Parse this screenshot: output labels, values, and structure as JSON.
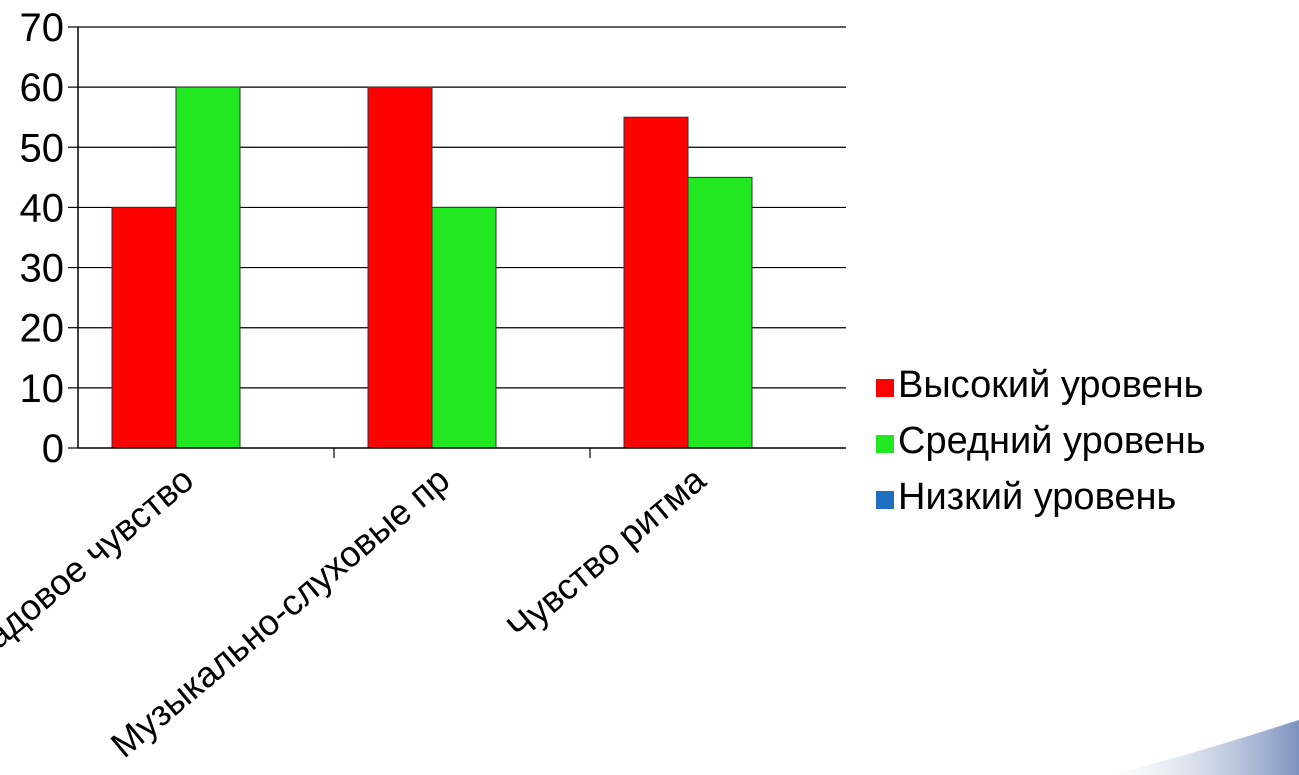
{
  "chart_data": {
    "type": "bar",
    "categories": [
      "Ладовое чувство",
      "Музыкально-слуховые пр",
      "Чувство ритма"
    ],
    "series": [
      {
        "name": "Высокий уровень",
        "color": "#ff0000",
        "values": [
          40,
          60,
          55
        ]
      },
      {
        "name": "Средний уровень",
        "color": "#22e822",
        "values": [
          60,
          40,
          45
        ]
      },
      {
        "name": "Низкий уровень",
        "color": "#1f6fc6",
        "values": [
          0,
          0,
          0
        ]
      }
    ],
    "yticks": [
      "0",
      "10",
      "20",
      "30",
      "40",
      "50",
      "60",
      "70"
    ],
    "ylim": [
      0,
      70
    ],
    "grid": true,
    "legend_position": "right"
  }
}
